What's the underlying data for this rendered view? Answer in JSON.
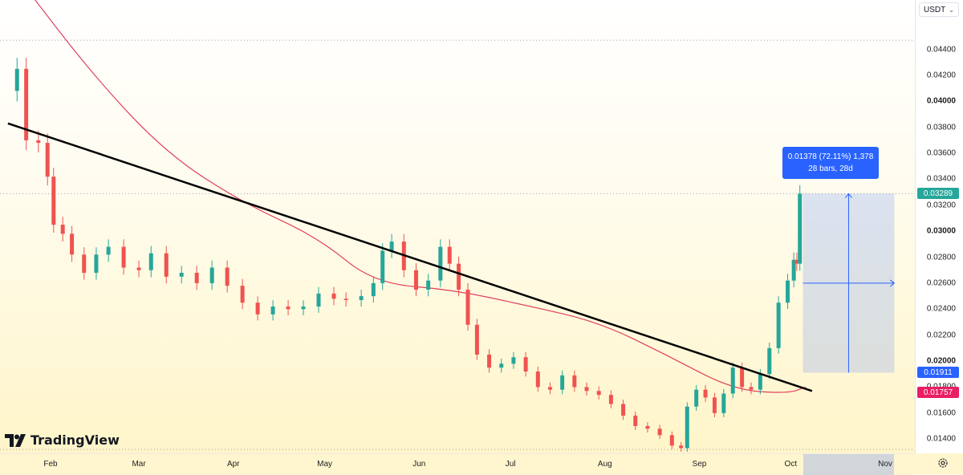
{
  "chart_data": {
    "type": "candlestick",
    "quote_currency": "USDT",
    "y_axis": {
      "ticks": [
        "0.04400",
        "0.04200",
        "0.04000",
        "0.03800",
        "0.03600",
        "0.03400",
        "0.03200",
        "0.03000",
        "0.02800",
        "0.02600",
        "0.02400",
        "0.02200",
        "0.02000",
        "0.01800",
        "0.01600",
        "0.01400"
      ],
      "major_ticks": [
        "0.04000",
        "0.03000",
        "0.02000"
      ],
      "range": [
        0.0129,
        0.0478
      ]
    },
    "x_axis": {
      "ticks": [
        "Feb",
        "Mar",
        "Apr",
        "May",
        "Jun",
        "Jul",
        "Aug",
        "Sep",
        "Oct",
        "Nov"
      ]
    },
    "candles": [
      {
        "date": "Jan 21",
        "close": 0.0425
      },
      {
        "date": "Jan 24",
        "close": 0.037
      },
      {
        "date": "Jan 28",
        "close": 0.0368
      },
      {
        "date": "Jan 31",
        "close": 0.0342
      },
      {
        "date": "Feb 2",
        "close": 0.0305
      },
      {
        "date": "Feb 5",
        "close": 0.0298
      },
      {
        "date": "Feb 8",
        "close": 0.0282
      },
      {
        "date": "Feb 12",
        "close": 0.0268
      },
      {
        "date": "Feb 16",
        "close": 0.0282
      },
      {
        "date": "Feb 20",
        "close": 0.0288
      },
      {
        "date": "Feb 25",
        "close": 0.0272
      },
      {
        "date": "Mar 1",
        "close": 0.027
      },
      {
        "date": "Mar 5",
        "close": 0.0283
      },
      {
        "date": "Mar 10",
        "close": 0.0265
      },
      {
        "date": "Mar 15",
        "close": 0.0268
      },
      {
        "date": "Mar 20",
        "close": 0.026
      },
      {
        "date": "Mar 25",
        "close": 0.0272
      },
      {
        "date": "Mar 30",
        "close": 0.0258
      },
      {
        "date": "Apr 4",
        "close": 0.0245
      },
      {
        "date": "Apr 9",
        "close": 0.0236
      },
      {
        "date": "Apr 14",
        "close": 0.0242
      },
      {
        "date": "Apr 19",
        "close": 0.024
      },
      {
        "date": "Apr 24",
        "close": 0.0242
      },
      {
        "date": "Apr 29",
        "close": 0.0252
      },
      {
        "date": "May 4",
        "close": 0.0248
      },
      {
        "date": "May 8",
        "close": 0.0247
      },
      {
        "date": "May 13",
        "close": 0.025
      },
      {
        "date": "May 17",
        "close": 0.026
      },
      {
        "date": "May 20",
        "close": 0.0285
      },
      {
        "date": "May 23",
        "close": 0.0292
      },
      {
        "date": "May 27",
        "close": 0.027
      },
      {
        "date": "May 31",
        "close": 0.0255
      },
      {
        "date": "Jun 4",
        "close": 0.0262
      },
      {
        "date": "Jun 8",
        "close": 0.0288
      },
      {
        "date": "Jun 11",
        "close": 0.0275
      },
      {
        "date": "Jun 14",
        "close": 0.0255
      },
      {
        "date": "Jun 17",
        "close": 0.0228
      },
      {
        "date": "Jun 20",
        "close": 0.0205
      },
      {
        "date": "Jun 24",
        "close": 0.0195
      },
      {
        "date": "Jun 28",
        "close": 0.0198
      },
      {
        "date": "Jul 2",
        "close": 0.0203
      },
      {
        "date": "Jul 6",
        "close": 0.0192
      },
      {
        "date": "Jul 10",
        "close": 0.018
      },
      {
        "date": "Jul 14",
        "close": 0.0178
      },
      {
        "date": "Jul 18",
        "close": 0.0189
      },
      {
        "date": "Jul 22",
        "close": 0.018
      },
      {
        "date": "Jul 26",
        "close": 0.0177
      },
      {
        "date": "Jul 30",
        "close": 0.0174
      },
      {
        "date": "Aug 3",
        "close": 0.0167
      },
      {
        "date": "Aug 7",
        "close": 0.0158
      },
      {
        "date": "Aug 11",
        "close": 0.015
      },
      {
        "date": "Aug 15",
        "close": 0.0148
      },
      {
        "date": "Aug 19",
        "close": 0.0143
      },
      {
        "date": "Aug 23",
        "close": 0.0135
      },
      {
        "date": "Aug 26",
        "close": 0.0133
      },
      {
        "date": "Aug 28",
        "close": 0.0165
      },
      {
        "date": "Aug 31",
        "close": 0.0178
      },
      {
        "date": "Sep 3",
        "close": 0.0172
      },
      {
        "date": "Sep 6",
        "close": 0.016
      },
      {
        "date": "Sep 9",
        "close": 0.0175
      },
      {
        "date": "Sep 12",
        "close": 0.0195
      },
      {
        "date": "Sep 15",
        "close": 0.018
      },
      {
        "date": "Sep 18",
        "close": 0.0178
      },
      {
        "date": "Sep 21",
        "close": 0.019
      },
      {
        "date": "Sep 24",
        "close": 0.021
      },
      {
        "date": "Sep 27",
        "close": 0.0245
      },
      {
        "date": "Sep 30",
        "close": 0.0262
      },
      {
        "date": "Oct 2",
        "close": 0.0278
      },
      {
        "date": "Oct 3",
        "close": 0.0275
      },
      {
        "date": "Oct 4",
        "close": 0.03289
      }
    ],
    "moving_average": [
      {
        "date": "Jan 23",
        "value": 0.049
      },
      {
        "date": "Feb 15",
        "value": 0.042
      },
      {
        "date": "Mar 10",
        "value": 0.036
      },
      {
        "date": "Apr 4",
        "value": 0.0322
      },
      {
        "date": "Apr 29",
        "value": 0.0295
      },
      {
        "date": "May 17",
        "value": 0.026
      },
      {
        "date": "Jun 12",
        "value": 0.0255
      },
      {
        "date": "Jul 6",
        "value": 0.0243
      },
      {
        "date": "Jul 30",
        "value": 0.023
      },
      {
        "date": "Aug 21",
        "value": 0.0205
      },
      {
        "date": "Sep 12",
        "value": 0.0178
      },
      {
        "date": "Sep 30",
        "value": 0.0175
      },
      {
        "date": "Oct 6",
        "value": 0.018
      }
    ],
    "trendline": {
      "from": {
        "date": "Jan 18",
        "value": 0.0383
      },
      "to": {
        "date": "Oct 8",
        "value": 0.0177
      }
    },
    "horizontal_lines": [
      0.0447,
      0.03289,
      0.0132
    ],
    "price_labels": [
      {
        "value": 0.03289,
        "text": "0.03289",
        "color": "#26a69a"
      },
      {
        "value": 0.01911,
        "text": "0.01911",
        "color": "#2962ff"
      },
      {
        "value": 0.01757,
        "text": "0.01757",
        "color": "#e91e63"
      }
    ],
    "measure": {
      "from_date": "Oct 5",
      "to_date": "Nov 4",
      "from_price": 0.01911,
      "to_price": 0.03289,
      "line1": "0.01378 (72.11%) 1,378",
      "line2": "28 bars, 28d"
    },
    "colors": {
      "up": "#26a69a",
      "down": "#ef5350",
      "ma": "#e0405f",
      "trendline": "#000000",
      "measure": "#2962ff"
    }
  },
  "ui": {
    "currency": "USDT",
    "brand": "TradingView",
    "settings_icon": "gear-icon"
  }
}
